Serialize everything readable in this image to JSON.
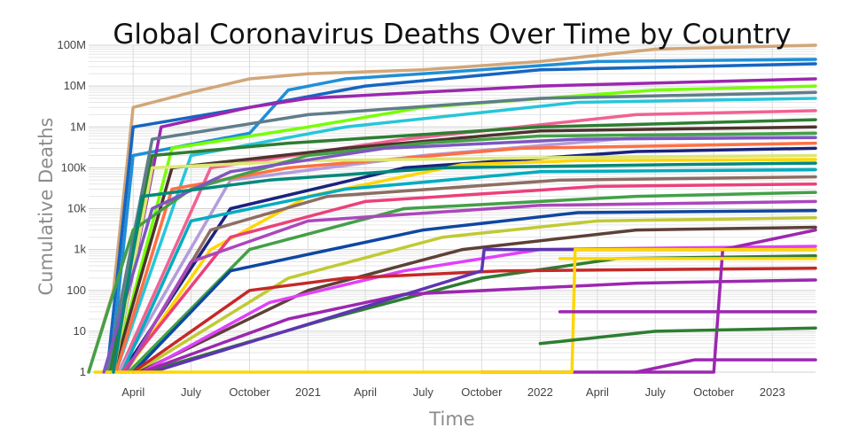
{
  "chart_data": {
    "type": "line",
    "title": "Global Coronavirus Deaths Over Time by Country",
    "xlabel": "Time",
    "ylabel": "Cumulative Deaths",
    "yscale": "log",
    "ylim": [
      1,
      100000000
    ],
    "xlim": [
      "2020-01-22",
      "2023-03-10"
    ],
    "grid": true,
    "legend": "none",
    "x_ticks": [
      {
        "date": "2020-04-01",
        "label": "April"
      },
      {
        "date": "2020-07-01",
        "label": "July"
      },
      {
        "date": "2020-10-01",
        "label": "October"
      },
      {
        "date": "2021-01-01",
        "label": "2021"
      },
      {
        "date": "2021-04-01",
        "label": "April"
      },
      {
        "date": "2021-07-01",
        "label": "July"
      },
      {
        "date": "2021-10-01",
        "label": "October"
      },
      {
        "date": "2022-01-01",
        "label": "2022"
      },
      {
        "date": "2022-04-01",
        "label": "April"
      },
      {
        "date": "2022-07-01",
        "label": "July"
      },
      {
        "date": "2022-10-01",
        "label": "October"
      },
      {
        "date": "2023-01-01",
        "label": "2023"
      }
    ],
    "y_ticks": [
      {
        "value": 1,
        "label": "1"
      },
      {
        "value": 10,
        "label": "10"
      },
      {
        "value": 100,
        "label": "100"
      },
      {
        "value": 1000,
        "label": "1k"
      },
      {
        "value": 10000,
        "label": "10k"
      },
      {
        "value": 100000,
        "label": "100k"
      },
      {
        "value": 1000000,
        "label": "1M"
      },
      {
        "value": 10000000,
        "label": "10M"
      },
      {
        "value": 100000000,
        "label": "100M"
      }
    ],
    "series": [
      {
        "color": "#d2a679",
        "points": [
          [
            "2020-01-22",
            1
          ],
          [
            "2020-03-01",
            100
          ],
          [
            "2020-04-01",
            3000000
          ],
          [
            "2020-07-01",
            7000000
          ],
          [
            "2020-10-01",
            15000000
          ],
          [
            "2021-01-01",
            20000000
          ],
          [
            "2021-07-01",
            25000000
          ],
          [
            "2022-01-01",
            40000000
          ],
          [
            "2022-07-01",
            80000000
          ],
          [
            "2023-03-10",
            100000000
          ]
        ]
      },
      {
        "color": "#1f8fd8",
        "points": [
          [
            "2020-02-25",
            1
          ],
          [
            "2020-04-01",
            200000
          ],
          [
            "2020-10-01",
            700000
          ],
          [
            "2020-12-01",
            8000000
          ],
          [
            "2021-03-01",
            15000000
          ],
          [
            "2021-10-01",
            25000000
          ],
          [
            "2022-04-01",
            40000000
          ],
          [
            "2023-03-10",
            45000000
          ]
        ]
      },
      {
        "color": "#1565c0",
        "points": [
          [
            "2020-02-20",
            1
          ],
          [
            "2020-04-01",
            1000000
          ],
          [
            "2020-10-01",
            3000000
          ],
          [
            "2021-04-01",
            10000000
          ],
          [
            "2022-01-01",
            25000000
          ],
          [
            "2023-03-10",
            35000000
          ]
        ]
      },
      {
        "color": "#9c27b0",
        "points": [
          [
            "2020-03-01",
            1
          ],
          [
            "2020-05-15",
            1000000
          ],
          [
            "2020-10-01",
            3000000
          ],
          [
            "2021-01-01",
            5000000
          ],
          [
            "2022-01-01",
            10000000
          ],
          [
            "2023-03-10",
            15000000
          ]
        ]
      },
      {
        "color": "#76ff03",
        "points": [
          [
            "2020-03-01",
            1
          ],
          [
            "2020-06-01",
            300000
          ],
          [
            "2021-01-01",
            1000000
          ],
          [
            "2021-07-01",
            3000000
          ],
          [
            "2022-07-01",
            8000000
          ],
          [
            "2023-03-10",
            10000000
          ]
        ]
      },
      {
        "color": "#607d8b",
        "points": [
          [
            "2020-02-20",
            1
          ],
          [
            "2020-05-01",
            500000
          ],
          [
            "2021-01-01",
            2000000
          ],
          [
            "2022-01-01",
            5000000
          ],
          [
            "2023-03-10",
            7000000
          ]
        ]
      },
      {
        "color": "#26c6da",
        "points": [
          [
            "2020-03-05",
            1
          ],
          [
            "2020-07-01",
            200000
          ],
          [
            "2021-03-01",
            1000000
          ],
          [
            "2022-03-01",
            4000000
          ],
          [
            "2023-03-10",
            5000000
          ]
        ]
      },
      {
        "color": "#f06292",
        "points": [
          [
            "2020-03-10",
            1
          ],
          [
            "2020-08-01",
            100000
          ],
          [
            "2021-06-01",
            500000
          ],
          [
            "2022-06-01",
            2000000
          ],
          [
            "2023-03-10",
            2500000
          ]
        ]
      },
      {
        "color": "#2e7d32",
        "points": [
          [
            "2020-02-25",
            1
          ],
          [
            "2020-05-01",
            200000
          ],
          [
            "2020-12-01",
            400000
          ],
          [
            "2022-01-01",
            1000000
          ],
          [
            "2023-03-10",
            1500000
          ]
        ]
      },
      {
        "color": "#4e342e",
        "points": [
          [
            "2020-03-01",
            1
          ],
          [
            "2020-06-01",
            100000
          ],
          [
            "2021-03-01",
            300000
          ],
          [
            "2022-01-01",
            800000
          ],
          [
            "2023-03-10",
            1000000
          ]
        ]
      },
      {
        "color": "#b39ddb",
        "points": [
          [
            "2020-03-10",
            1
          ],
          [
            "2020-09-01",
            50000
          ],
          [
            "2021-07-01",
            200000
          ],
          [
            "2022-07-01",
            600000
          ],
          [
            "2023-03-10",
            700000
          ]
        ]
      },
      {
        "color": "#ff7043",
        "points": [
          [
            "2020-03-05",
            1
          ],
          [
            "2020-06-01",
            30000
          ],
          [
            "2020-12-01",
            100000
          ],
          [
            "2021-12-01",
            300000
          ],
          [
            "2023-03-10",
            400000
          ]
        ]
      },
      {
        "color": "#1a237e",
        "points": [
          [
            "2020-03-15",
            1
          ],
          [
            "2020-09-01",
            10000
          ],
          [
            "2021-06-01",
            100000
          ],
          [
            "2022-06-01",
            250000
          ],
          [
            "2023-03-10",
            300000
          ]
        ]
      },
      {
        "color": "#dce775",
        "points": [
          [
            "2020-03-01",
            1
          ],
          [
            "2020-05-01",
            100000
          ],
          [
            "2021-01-01",
            150000
          ],
          [
            "2022-03-01",
            180000
          ],
          [
            "2023-03-10",
            200000
          ]
        ]
      },
      {
        "color": "#ffd600",
        "points": [
          [
            "2020-03-20",
            1
          ],
          [
            "2020-08-01",
            1000
          ],
          [
            "2021-01-01",
            20000
          ],
          [
            "2021-09-01",
            120000
          ],
          [
            "2022-03-01",
            150000
          ],
          [
            "2023-03-10",
            160000
          ]
        ]
      },
      {
        "color": "#00acc1",
        "points": [
          [
            "2020-03-15",
            1
          ],
          [
            "2020-07-01",
            5000
          ],
          [
            "2021-03-01",
            30000
          ],
          [
            "2022-01-01",
            80000
          ],
          [
            "2023-03-10",
            90000
          ]
        ]
      },
      {
        "color": "#8d6e63",
        "points": [
          [
            "2020-03-20",
            1
          ],
          [
            "2020-08-01",
            3000
          ],
          [
            "2021-02-01",
            20000
          ],
          [
            "2022-02-01",
            50000
          ],
          [
            "2023-03-10",
            60000
          ]
        ]
      },
      {
        "color": "#ec407a",
        "points": [
          [
            "2020-03-15",
            1
          ],
          [
            "2020-09-01",
            2000
          ],
          [
            "2021-04-01",
            15000
          ],
          [
            "2022-04-01",
            35000
          ],
          [
            "2023-03-10",
            40000
          ]
        ]
      },
      {
        "color": "#43a047",
        "points": [
          [
            "2020-03-25",
            1
          ],
          [
            "2020-10-01",
            1000
          ],
          [
            "2021-06-01",
            10000
          ],
          [
            "2022-06-01",
            20000
          ],
          [
            "2023-03-10",
            25000
          ]
        ]
      },
      {
        "color": "#ab47bc",
        "points": [
          [
            "2020-03-20",
            1
          ],
          [
            "2020-07-01",
            500
          ],
          [
            "2021-01-01",
            5000
          ],
          [
            "2022-01-01",
            12000
          ],
          [
            "2023-03-10",
            15000
          ]
        ]
      },
      {
        "color": "#0d47a1",
        "points": [
          [
            "2020-04-01",
            1
          ],
          [
            "2020-09-01",
            300
          ],
          [
            "2021-07-01",
            3000
          ],
          [
            "2022-03-01",
            8000
          ],
          [
            "2023-03-10",
            9000
          ]
        ]
      },
      {
        "color": "#c0ca33",
        "points": [
          [
            "2020-04-05",
            1
          ],
          [
            "2020-12-01",
            200
          ],
          [
            "2021-08-01",
            2000
          ],
          [
            "2022-04-01",
            5000
          ],
          [
            "2023-03-10",
            6000
          ]
        ]
      },
      {
        "color": "#5d4037",
        "points": [
          [
            "2020-04-10",
            1
          ],
          [
            "2021-01-01",
            100
          ],
          [
            "2021-09-01",
            1000
          ],
          [
            "2022-06-01",
            3000
          ],
          [
            "2023-03-10",
            3500
          ]
        ]
      },
      {
        "color": "#e040fb",
        "points": [
          [
            "2020-04-15",
            1
          ],
          [
            "2020-11-01",
            50
          ],
          [
            "2021-06-01",
            300
          ],
          [
            "2022-01-01",
            1000
          ],
          [
            "2023-03-10",
            1200
          ]
        ]
      },
      {
        "color": "#2e7d32",
        "points": [
          [
            "2020-04-20",
            1
          ],
          [
            "2021-02-01",
            20
          ],
          [
            "2021-10-01",
            200
          ],
          [
            "2022-05-01",
            600
          ],
          [
            "2023-03-10",
            700
          ]
        ]
      },
      {
        "color": "#c62828",
        "points": [
          [
            "2020-04-01",
            1
          ],
          [
            "2020-10-01",
            100
          ],
          [
            "2021-03-01",
            200
          ],
          [
            "2021-11-01",
            300
          ],
          [
            "2023-03-10",
            350
          ]
        ]
      },
      {
        "color": "#9c27b0",
        "points": [
          [
            "2020-04-15",
            1
          ],
          [
            "2020-12-01",
            20
          ],
          [
            "2021-06-01",
            80
          ],
          [
            "2022-06-01",
            150
          ],
          [
            "2023-03-10",
            180
          ]
        ]
      },
      {
        "color": "#5e35b1",
        "points": [
          [
            "2020-05-01",
            1
          ],
          [
            "2021-10-01",
            300
          ],
          [
            "2021-10-05",
            1000
          ],
          [
            "2023-03-10",
            1000
          ]
        ]
      },
      {
        "color": "#9c27b0",
        "points": [
          [
            "2021-10-01",
            1
          ],
          [
            "2022-10-01",
            1
          ],
          [
            "2022-10-15",
            1000
          ],
          [
            "2023-03-10",
            3000
          ]
        ]
      },
      {
        "color": "#ffd600",
        "points": [
          [
            "2020-02-01",
            1
          ],
          [
            "2021-01-01",
            1
          ],
          [
            "2021-12-20",
            1
          ],
          [
            "2022-02-20",
            1
          ],
          [
            "2022-02-25",
            1000
          ],
          [
            "2023-03-10",
            1000
          ]
        ]
      },
      {
        "color": "#ffd600",
        "points": [
          [
            "2022-02-01",
            600
          ],
          [
            "2023-03-10",
            600
          ]
        ]
      },
      {
        "color": "#9c27b0",
        "points": [
          [
            "2022-02-01",
            30
          ],
          [
            "2023-03-10",
            30
          ]
        ]
      },
      {
        "color": "#2e7d32",
        "points": [
          [
            "2022-01-01",
            5
          ],
          [
            "2022-07-01",
            10
          ],
          [
            "2023-03-10",
            12
          ]
        ]
      },
      {
        "color": "#9c27b0",
        "points": [
          [
            "2022-06-01",
            1
          ],
          [
            "2022-09-01",
            2
          ],
          [
            "2023-03-10",
            2
          ]
        ]
      },
      {
        "color": "#43a047",
        "points": [
          [
            "2020-01-22",
            1
          ],
          [
            "2020-04-01",
            3000
          ],
          [
            "2020-07-01",
            30000
          ],
          [
            "2021-01-01",
            200000
          ],
          [
            "2021-07-01",
            400000
          ],
          [
            "2022-01-01",
            600000
          ],
          [
            "2023-03-10",
            700000
          ]
        ]
      },
      {
        "color": "#7e57c2",
        "points": [
          [
            "2020-02-15",
            1
          ],
          [
            "2020-05-01",
            10000
          ],
          [
            "2020-09-01",
            80000
          ],
          [
            "2021-05-01",
            300000
          ],
          [
            "2022-03-01",
            500000
          ],
          [
            "2023-03-10",
            550000
          ]
        ]
      },
      {
        "color": "#00897b",
        "points": [
          [
            "2020-03-01",
            1
          ],
          [
            "2020-04-15",
            20000
          ],
          [
            "2020-11-01",
            50000
          ],
          [
            "2021-08-01",
            100000
          ],
          [
            "2022-08-01",
            120000
          ],
          [
            "2023-03-10",
            130000
          ]
        ]
      }
    ]
  }
}
